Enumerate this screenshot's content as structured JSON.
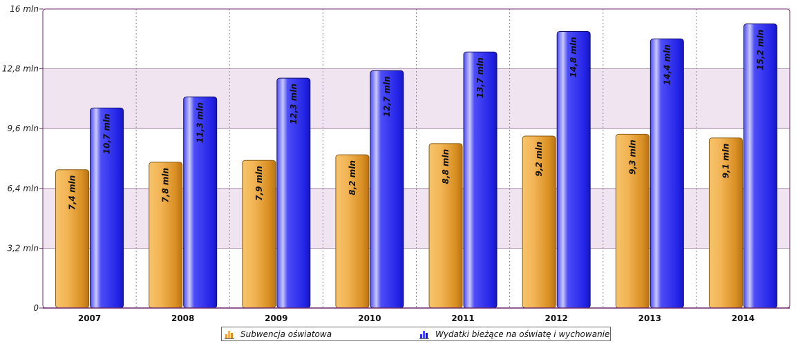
{
  "chart_data": {
    "type": "bar",
    "categories": [
      "2007",
      "2008",
      "2009",
      "2010",
      "2011",
      "2012",
      "2013",
      "2014"
    ],
    "series": [
      {
        "name": "Subwencja oświatowa",
        "color": "#E8A23C",
        "values": [
          7.4,
          7.8,
          7.9,
          8.2,
          8.8,
          9.2,
          9.3,
          9.1
        ],
        "labels": [
          "7,4 mln",
          "7,8 mln",
          "7,9 mln",
          "8,2 mln",
          "8,8 mln",
          "9,2 mln",
          "9,3 mln",
          "9,1 mln"
        ]
      },
      {
        "name": "Wydatki bieżące na oświatę i wychowanie",
        "color": "#2B2BF0",
        "values": [
          10.7,
          11.3,
          12.3,
          12.7,
          13.7,
          14.8,
          14.4,
          15.2
        ],
        "labels": [
          "10,7 mln",
          "11,3 mln",
          "12,3 mln",
          "12,7 mln",
          "13,7 mln",
          "14,8 mln",
          "14,4 mln",
          "15,2 mln"
        ]
      }
    ],
    "yticks": [
      0,
      3.2,
      6.4,
      9.6,
      12.8,
      16
    ],
    "ytick_labels": [
      "0",
      "3,2 mln",
      "6,4 mln",
      "9,6 mln",
      "12,8 mln",
      "16 mln"
    ],
    "ylim": [
      0,
      16
    ],
    "title": "",
    "xlabel": "",
    "ylabel": "",
    "grid": true,
    "band_color": "#EFE4F0",
    "frame_color": "#6A2A6A",
    "legend_position": "bottom-center"
  },
  "legend": {
    "items": [
      {
        "label": "Subwencja oświatowa",
        "icon": "bar-chart-icon-orange"
      },
      {
        "label": "Wydatki bieżące na oświatę i wychowanie",
        "icon": "bar-chart-icon-blue"
      }
    ]
  }
}
